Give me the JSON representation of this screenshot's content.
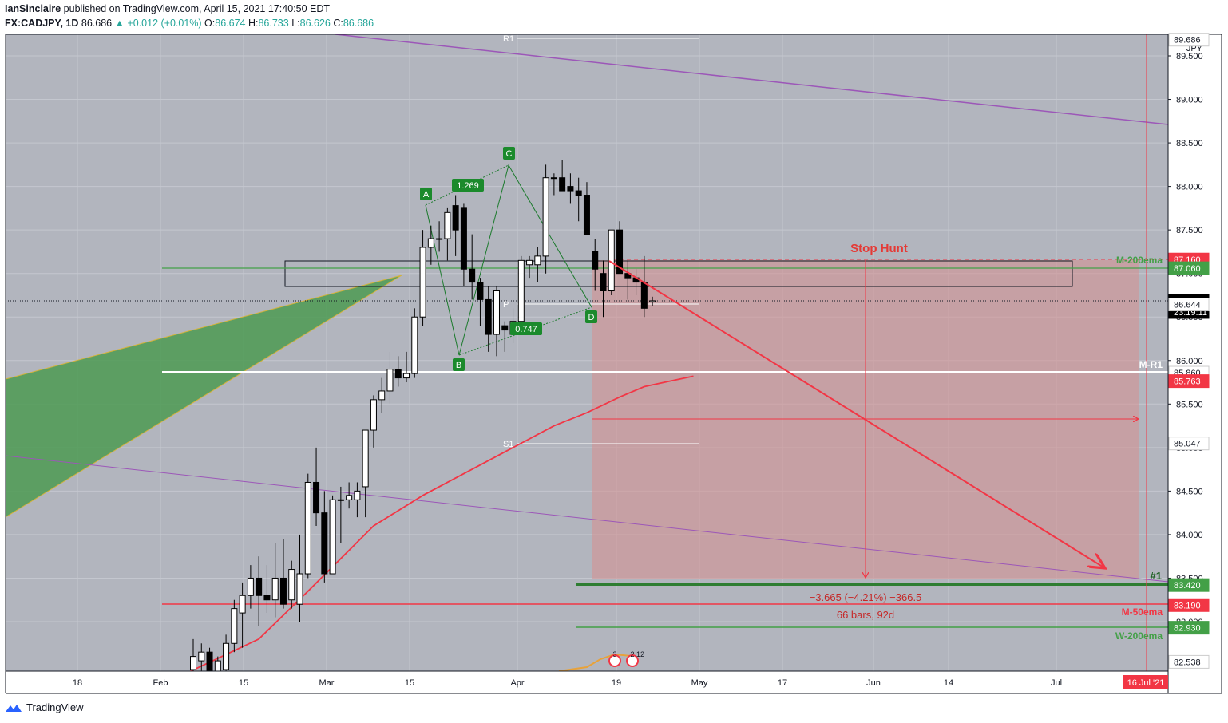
{
  "header": {
    "author": "IanSinclaire",
    "published": "published on TradingView.com, April 15, 2021 17:40:50 EDT",
    "symbol": "FX:CADJPY, 1D",
    "last": "86.686",
    "change": "▲ +0.012 (+0.01%)",
    "o_label": "O:",
    "o": "86.674",
    "h_label": "H:",
    "h": "86.733",
    "l_label": "L:",
    "l": "86.626",
    "c_label": "C:",
    "c": "86.686"
  },
  "footer": {
    "brand": "TradingView"
  },
  "colors": {
    "plot_bg": "#b2b5be",
    "up": "#ffffff",
    "down": "#000000",
    "ema": "#f23645",
    "zone": "#d49292",
    "wedge": "#4c9a52",
    "accent_red": "#f23645",
    "accent_green": "#43a047"
  },
  "chart_data": {
    "type": "candlestick",
    "title": "FX:CADJPY, 1D",
    "currency": "JPY",
    "ylim": [
      82.35,
      89.75
    ],
    "y_ticks": [
      "83.000",
      "83.500",
      "84.000",
      "84.500",
      "85.000",
      "85.500",
      "86.000",
      "86.500",
      "87.000",
      "87.500",
      "88.000",
      "88.500",
      "89.000",
      "89.500"
    ],
    "x_ticks": [
      "18",
      "Feb",
      "15",
      "Mar",
      "15",
      "Apr",
      "19",
      "May",
      "17",
      "Jun",
      "14",
      "Jul"
    ],
    "x_end_label": "16 Jul '21",
    "candles": [
      {
        "d": "2021-02-08",
        "o": 82.45,
        "h": 82.8,
        "l": 82.1,
        "c": 82.6
      },
      {
        "d": "2021-02-09",
        "o": 82.55,
        "h": 82.75,
        "l": 82.3,
        "c": 82.65
      },
      {
        "d": "2021-02-10",
        "o": 82.65,
        "h": 82.7,
        "l": 82.2,
        "c": 82.35
      },
      {
        "d": "2021-02-11",
        "o": 82.3,
        "h": 82.6,
        "l": 82.15,
        "c": 82.55
      },
      {
        "d": "2021-02-12",
        "o": 82.45,
        "h": 82.85,
        "l": 82.2,
        "c": 82.75
      },
      {
        "d": "2021-02-15",
        "o": 82.75,
        "h": 83.25,
        "l": 82.65,
        "c": 83.15
      },
      {
        "d": "2021-02-16",
        "o": 83.1,
        "h": 83.45,
        "l": 82.7,
        "c": 83.3
      },
      {
        "d": "2021-02-17",
        "o": 83.3,
        "h": 83.65,
        "l": 83.15,
        "c": 83.5
      },
      {
        "d": "2021-02-18",
        "o": 83.5,
        "h": 83.75,
        "l": 82.95,
        "c": 83.3
      },
      {
        "d": "2021-02-19",
        "o": 83.3,
        "h": 83.65,
        "l": 83.1,
        "c": 83.25
      },
      {
        "d": "2021-02-22",
        "o": 83.25,
        "h": 83.9,
        "l": 83.05,
        "c": 83.5
      },
      {
        "d": "2021-02-23",
        "o": 83.5,
        "h": 83.95,
        "l": 83.15,
        "c": 83.2
      },
      {
        "d": "2021-02-24",
        "o": 83.25,
        "h": 83.7,
        "l": 83.15,
        "c": 83.6
      },
      {
        "d": "2021-02-25",
        "o": 83.2,
        "h": 84.0,
        "l": 83.0,
        "c": 83.55
      },
      {
        "d": "2021-02-26",
        "o": 83.55,
        "h": 84.7,
        "l": 83.5,
        "c": 84.6
      },
      {
        "d": "2021-03-01",
        "o": 84.6,
        "h": 85.0,
        "l": 84.1,
        "c": 84.25
      },
      {
        "d": "2021-03-02",
        "o": 84.25,
        "h": 84.5,
        "l": 83.45,
        "c": 83.55
      },
      {
        "d": "2021-03-03",
        "o": 83.55,
        "h": 84.45,
        "l": 83.55,
        "c": 84.4
      },
      {
        "d": "2021-03-04",
        "o": 84.4,
        "h": 84.55,
        "l": 83.9,
        "c": 84.4
      },
      {
        "d": "2021-03-05",
        "o": 84.4,
        "h": 84.6,
        "l": 84.3,
        "c": 84.45
      },
      {
        "d": "2021-03-08",
        "o": 84.4,
        "h": 84.6,
        "l": 84.2,
        "c": 84.5
      },
      {
        "d": "2021-03-09",
        "o": 84.55,
        "h": 85.2,
        "l": 84.2,
        "c": 85.2
      },
      {
        "d": "2021-03-10",
        "o": 85.2,
        "h": 85.6,
        "l": 85.0,
        "c": 85.55
      },
      {
        "d": "2021-03-11",
        "o": 85.55,
        "h": 85.8,
        "l": 85.4,
        "c": 85.65
      },
      {
        "d": "2021-03-12",
        "o": 85.65,
        "h": 86.1,
        "l": 85.5,
        "c": 85.9
      },
      {
        "d": "2021-03-15",
        "o": 85.9,
        "h": 86.05,
        "l": 85.7,
        "c": 85.8
      },
      {
        "d": "2021-03-16",
        "o": 85.8,
        "h": 86.1,
        "l": 85.75,
        "c": 85.85
      },
      {
        "d": "2021-03-17",
        "o": 85.85,
        "h": 86.6,
        "l": 85.8,
        "c": 86.5
      },
      {
        "d": "2021-03-18",
        "o": 86.5,
        "h": 87.5,
        "l": 86.4,
        "c": 87.3
      },
      {
        "d": "2021-03-19",
        "o": 87.3,
        "h": 87.55,
        "l": 87.1,
        "c": 87.4
      },
      {
        "d": "2021-03-22",
        "o": 87.4,
        "h": 87.6,
        "l": 87.25,
        "c": 87.4
      },
      {
        "d": "2021-03-23",
        "o": 87.4,
        "h": 87.75,
        "l": 87.15,
        "c": 87.7
      },
      {
        "d": "2021-03-24",
        "o": 87.78,
        "h": 87.9,
        "l": 87.2,
        "c": 87.5
      },
      {
        "d": "2021-03-25",
        "o": 87.75,
        "h": 87.8,
        "l": 86.85,
        "c": 87.05
      },
      {
        "d": "2021-03-26",
        "o": 87.05,
        "h": 87.45,
        "l": 86.7,
        "c": 86.9
      },
      {
        "d": "2021-03-29",
        "o": 86.9,
        "h": 86.95,
        "l": 86.4,
        "c": 86.7
      },
      {
        "d": "2021-03-30",
        "o": 86.7,
        "h": 86.85,
        "l": 86.1,
        "c": 86.3
      },
      {
        "d": "2021-03-31",
        "o": 86.3,
        "h": 86.85,
        "l": 86.05,
        "c": 86.8
      },
      {
        "d": "2021-04-01",
        "o": 86.4,
        "h": 86.45,
        "l": 86.1,
        "c": 86.35
      },
      {
        "d": "2021-04-02",
        "o": 86.3,
        "h": 86.6,
        "l": 86.2,
        "c": 86.45
      },
      {
        "d": "2021-04-05",
        "o": 86.45,
        "h": 87.2,
        "l": 86.45,
        "c": 87.15
      },
      {
        "d": "2021-04-06",
        "o": 87.1,
        "h": 87.2,
        "l": 86.95,
        "c": 87.15
      },
      {
        "d": "2021-04-07",
        "o": 87.1,
        "h": 87.3,
        "l": 86.9,
        "c": 87.2
      },
      {
        "d": "2021-04-08",
        "o": 87.2,
        "h": 88.25,
        "l": 87.0,
        "c": 88.1
      },
      {
        "d": "2021-04-09",
        "o": 88.1,
        "h": 88.15,
        "l": 87.9,
        "c": 88.1
      },
      {
        "d": "2021-04-12",
        "o": 88.1,
        "h": 88.3,
        "l": 87.95,
        "c": 87.95
      },
      {
        "d": "2021-04-13",
        "o": 88.0,
        "h": 88.15,
        "l": 87.8,
        "c": 87.95
      },
      {
        "d": "2021-04-14",
        "o": 87.95,
        "h": 88.1,
        "l": 87.6,
        "c": 87.9
      },
      {
        "d": "2021-04-15",
        "o": 87.9,
        "h": 88.05,
        "l": 87.45,
        "c": 87.45
      },
      {
        "d": "2021-04-16",
        "o": 87.25,
        "h": 87.4,
        "l": 86.8,
        "c": 87.05
      },
      {
        "d": "2021-04-19",
        "o": 87.0,
        "h": 87.15,
        "l": 86.5,
        "c": 86.8
      },
      {
        "d": "2021-04-20",
        "o": 86.8,
        "h": 87.5,
        "l": 86.75,
        "c": 87.5
      },
      {
        "d": "2021-04-21",
        "o": 87.5,
        "h": 87.6,
        "l": 87.0,
        "c": 87.0
      },
      {
        "d": "2021-04-22",
        "o": 87.0,
        "h": 87.15,
        "l": 86.7,
        "c": 86.95
      },
      {
        "d": "2021-04-23",
        "o": 86.95,
        "h": 87.05,
        "l": 86.75,
        "c": 86.9
      },
      {
        "d": "2021-04-26",
        "o": 86.9,
        "h": 87.2,
        "l": 86.5,
        "c": 86.6
      },
      {
        "d": "2021-04-27",
        "o": 86.674,
        "h": 86.733,
        "l": 86.626,
        "c": 86.686
      }
    ],
    "ema": {
      "name": "",
      "points": [
        [
          -1,
          82.4
        ],
        [
          8,
          82.8
        ],
        [
          14,
          83.35
        ],
        [
          22,
          84.1
        ],
        [
          28,
          84.45
        ],
        [
          36,
          84.85
        ],
        [
          44,
          85.25
        ],
        [
          48,
          85.4
        ],
        [
          52,
          85.58
        ],
        [
          55,
          85.7
        ],
        [
          58,
          85.76
        ],
        [
          61,
          85.82
        ]
      ]
    },
    "price_labels": [
      {
        "value": "89.686",
        "bg": "#ffffff",
        "fg": "#131722"
      },
      {
        "value": "87.160",
        "bg": "#f23645",
        "fg": "#ffffff"
      },
      {
        "value": "87.060",
        "bg": "#43a047",
        "fg": "#ffffff"
      },
      {
        "value": "86.686",
        "bg": "#000000",
        "fg": "#ffffff",
        "sub": "23:19:11"
      },
      {
        "value": "86.644",
        "bg": "#ffffff",
        "fg": "#131722"
      },
      {
        "value": "85.860",
        "bg": "#ffffff",
        "fg": "#131722"
      },
      {
        "value": "85.763",
        "bg": "#f23645",
        "fg": "#ffffff"
      },
      {
        "value": "85.047",
        "bg": "#ffffff",
        "fg": "#131722"
      },
      {
        "value": "83.420",
        "bg": "#43a047",
        "fg": "#ffffff"
      },
      {
        "value": "83.190",
        "bg": "#f23645",
        "fg": "#ffffff"
      },
      {
        "value": "82.930",
        "bg": "#43a047",
        "fg": "#ffffff"
      },
      {
        "value": "82.538",
        "bg": "#ffffff",
        "fg": "#131722"
      }
    ],
    "levels": [
      {
        "label": "M-200ema",
        "value": 87.06,
        "color": "#43a047"
      },
      {
        "label": "M-R1",
        "value": 85.86,
        "color": "#ffffff"
      },
      {
        "label": "M-50ema",
        "value": 83.19,
        "color": "#f23645"
      },
      {
        "label": "W-200ema",
        "value": 82.93,
        "color": "#43a047"
      },
      {
        "label": "#1",
        "value": 83.42,
        "color": "#2e7d32"
      }
    ],
    "pivots": [
      {
        "label": "R1",
        "value": 89.66
      },
      {
        "label": "P",
        "value": 86.64
      },
      {
        "label": "S1",
        "value": 85.04
      }
    ],
    "harmonic": {
      "points": [
        {
          "label": "A",
          "value": 87.75
        },
        {
          "label": "B",
          "value": 86.1
        },
        {
          "label": "C",
          "value": 88.25
        },
        {
          "label": "D",
          "value": 86.55
        }
      ],
      "ratios": [
        "1.269",
        "0.747"
      ]
    },
    "annotations": {
      "stop_hunt": "Stop Hunt",
      "measure_line1": "−3.665 (−4.21%) −366.5",
      "measure_line2": "66 bars, 92d",
      "events": [
        "3",
        "2",
        "12"
      ]
    }
  }
}
